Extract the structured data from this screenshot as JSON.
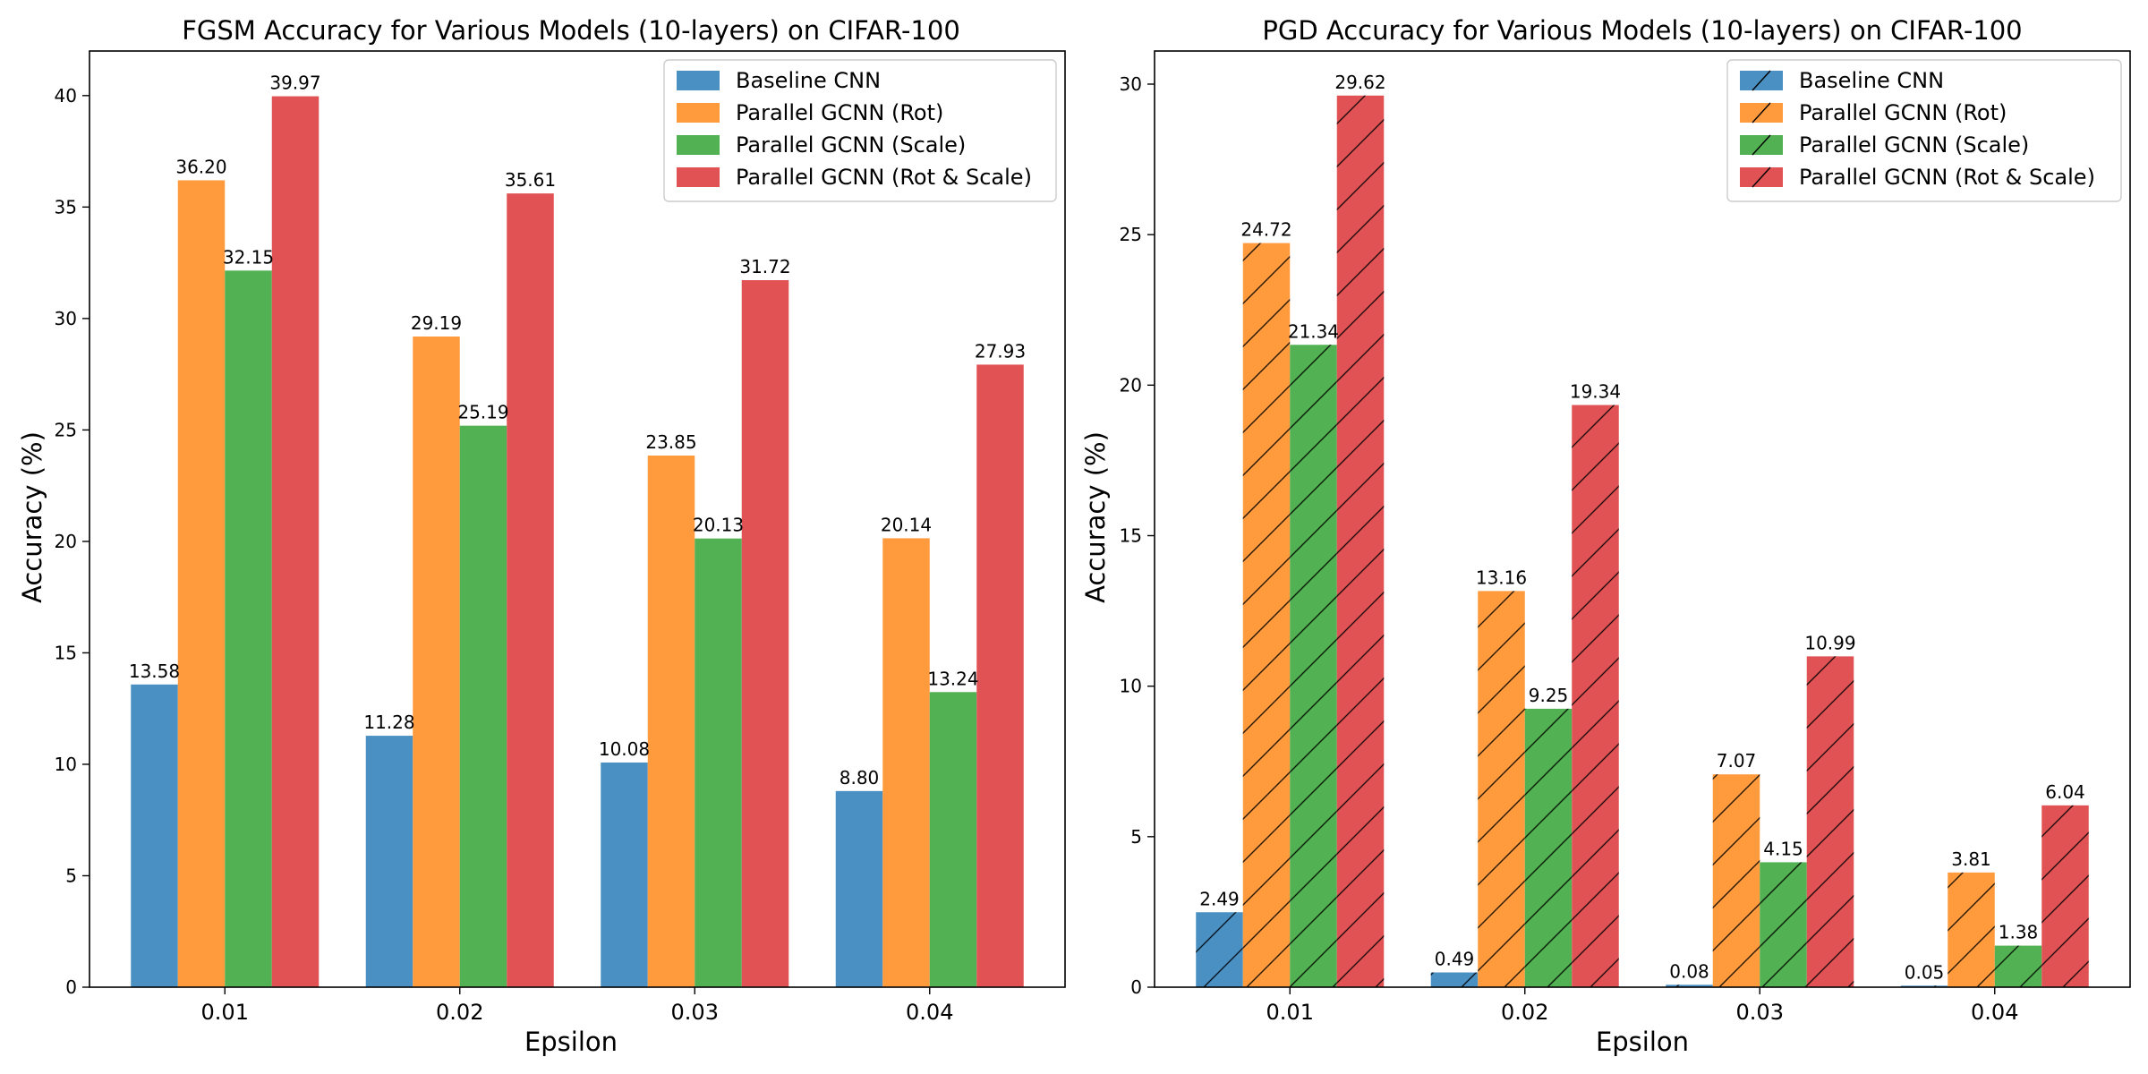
{
  "chart_data": [
    {
      "type": "bar",
      "title": "FGSM Accuracy for Various Models (10-layers) on CIFAR-100",
      "xlabel": "Epsilon",
      "ylabel": "Accuracy (%)",
      "categories": [
        "0.01",
        "0.02",
        "0.03",
        "0.04"
      ],
      "ylim": [
        0,
        42
      ],
      "yticks": [
        0,
        5,
        10,
        15,
        20,
        25,
        30,
        35,
        40
      ],
      "grid": false,
      "legend": "top-right",
      "hatch": false,
      "series": [
        {
          "name": "Baseline CNN",
          "color": "#4a90c2",
          "values": [
            13.58,
            11.28,
            10.08,
            8.8
          ],
          "labels": [
            "13.58",
            "11.28",
            "10.08",
            "8.80"
          ]
        },
        {
          "name": "Parallel GCNN (Rot)",
          "color": "#ff9a3d",
          "values": [
            36.2,
            29.19,
            23.85,
            20.14
          ],
          "labels": [
            "36.20",
            "29.19",
            "23.85",
            "20.14"
          ]
        },
        {
          "name": "Parallel GCNN (Scale)",
          "color": "#52b152",
          "values": [
            32.15,
            25.19,
            20.13,
            13.24
          ],
          "labels": [
            "32.15",
            "25.19",
            "20.13",
            "13.24"
          ]
        },
        {
          "name": "Parallel GCNN (Rot & Scale)",
          "color": "#e05254",
          "values": [
            39.97,
            35.61,
            31.72,
            27.93
          ],
          "labels": [
            "39.97",
            "35.61",
            "31.72",
            "27.93"
          ]
        }
      ]
    },
    {
      "type": "bar",
      "title": "PGD Accuracy for Various Models (10-layers) on CIFAR-100",
      "xlabel": "Epsilon",
      "ylabel": "Accuracy (%)",
      "categories": [
        "0.01",
        "0.02",
        "0.03",
        "0.04"
      ],
      "ylim": [
        0,
        31.1
      ],
      "yticks": [
        0,
        5,
        10,
        15,
        20,
        25,
        30
      ],
      "grid": false,
      "legend": "top-right",
      "hatch": true,
      "series": [
        {
          "name": "Baseline CNN",
          "color": "#4a90c2",
          "values": [
            2.49,
            0.49,
            0.08,
            0.05
          ],
          "labels": [
            "2.49",
            "0.49",
            "0.08",
            "0.05"
          ]
        },
        {
          "name": "Parallel GCNN (Rot)",
          "color": "#ff9a3d",
          "values": [
            24.72,
            13.16,
            7.07,
            3.81
          ],
          "labels": [
            "24.72",
            "13.16",
            "7.07",
            "3.81"
          ]
        },
        {
          "name": "Parallel GCNN (Scale)",
          "color": "#52b152",
          "values": [
            21.34,
            9.25,
            4.15,
            1.38
          ],
          "labels": [
            "21.34",
            "9.25",
            "4.15",
            "1.38"
          ]
        },
        {
          "name": "Parallel GCNN (Rot & Scale)",
          "color": "#e05254",
          "values": [
            29.62,
            19.34,
            10.99,
            6.04
          ],
          "labels": [
            "29.62",
            "19.34",
            "10.99",
            "6.04"
          ]
        }
      ]
    }
  ]
}
